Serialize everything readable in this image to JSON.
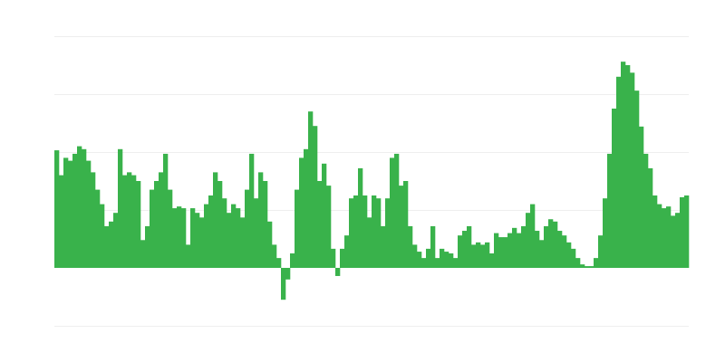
{
  "chart_data": {
    "type": "bar",
    "title": "",
    "xlabel": "",
    "ylabel": "",
    "ylim": [
      -1,
      4
    ],
    "gridlines": [
      -1,
      0,
      1,
      2,
      3,
      4
    ],
    "grid": true,
    "legend": "none",
    "bar_color": "#39b24b",
    "grid_color": "#eeeeee",
    "values": [
      2.03,
      1.6,
      1.9,
      1.85,
      1.97,
      2.1,
      2.05,
      1.85,
      1.65,
      1.35,
      1.1,
      0.72,
      0.8,
      0.95,
      2.05,
      1.6,
      1.65,
      1.6,
      1.5,
      0.48,
      0.72,
      1.35,
      1.5,
      1.65,
      1.97,
      1.35,
      1.03,
      1.06,
      1.03,
      0.4,
      1.03,
      0.95,
      0.87,
      1.1,
      1.25,
      1.65,
      1.5,
      1.2,
      0.95,
      1.1,
      1.03,
      0.87,
      1.35,
      1.97,
      1.2,
      1.65,
      1.5,
      0.8,
      0.4,
      0.17,
      -0.55,
      -0.2,
      0.25,
      1.35,
      1.9,
      2.05,
      2.7,
      2.45,
      1.5,
      1.8,
      1.42,
      0.33,
      -0.14,
      0.33,
      0.56,
      1.2,
      1.25,
      1.72,
      1.25,
      0.87,
      1.25,
      1.2,
      0.72,
      1.2,
      1.9,
      1.97,
      1.42,
      1.5,
      0.72,
      0.4,
      0.28,
      0.17,
      0.33,
      0.72,
      0.17,
      0.33,
      0.28,
      0.25,
      0.17,
      0.56,
      0.64,
      0.72,
      0.4,
      0.44,
      0.4,
      0.44,
      0.25,
      0.6,
      0.53,
      0.53,
      0.6,
      0.69,
      0.6,
      0.72,
      0.95,
      1.1,
      0.64,
      0.48,
      0.72,
      0.84,
      0.8,
      0.64,
      0.56,
      0.44,
      0.33,
      0.17,
      0.06,
      0.03,
      0.03,
      0.17,
      0.56,
      1.2,
      1.97,
      2.75,
      3.3,
      3.56,
      3.5,
      3.37,
      3.06,
      2.44,
      1.97,
      1.72,
      1.25,
      1.1,
      1.03,
      1.06,
      0.9,
      0.95,
      1.22,
      1.25
    ]
  }
}
